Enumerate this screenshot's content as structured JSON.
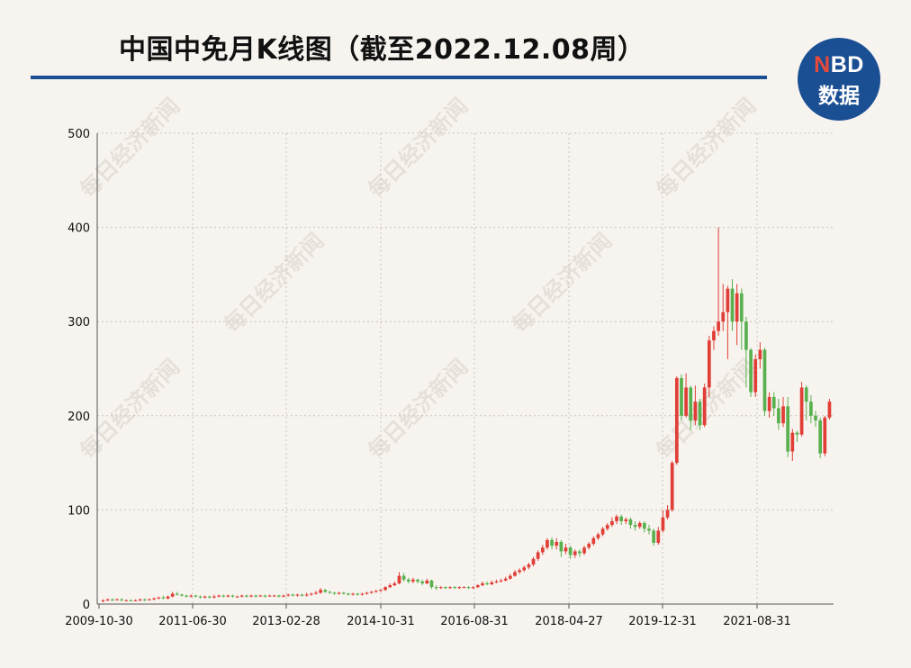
{
  "title": "中国中免月K线图（截至2022.12.08周）",
  "logo": {
    "n": "N",
    "bd": "BD",
    "sub": "数据"
  },
  "watermark": "每日经济新闻",
  "colors": {
    "up": "#e03e36",
    "down": "#58b04e",
    "rule": "#1b4f93",
    "grid": "#c9c4bc"
  },
  "chart_data": {
    "type": "candlestick",
    "title": "中国中免月K线图（截至2022.12.08周）",
    "ylim": [
      0,
      500
    ],
    "yticks": [
      0,
      100,
      200,
      300,
      400,
      500
    ],
    "ytick_labels": [
      "0",
      "100",
      "200",
      "300",
      "400",
      "500"
    ],
    "xtick_labels": [
      "2009-10-30",
      "2011-06-30",
      "2013-02-28",
      "2014-10-31",
      "2016-08-31",
      "2018-04-27",
      "2019-12-31",
      "2021-08-31"
    ],
    "grid": true,
    "fields": [
      "open",
      "close",
      "high",
      "low"
    ],
    "candles": [
      [
        3,
        4,
        5,
        2
      ],
      [
        4,
        5,
        6,
        3
      ],
      [
        5,
        4,
        6,
        3
      ],
      [
        4,
        5,
        6,
        4
      ],
      [
        5,
        4,
        6,
        3
      ],
      [
        4,
        4,
        5,
        3
      ],
      [
        4,
        3,
        5,
        3
      ],
      [
        3,
        4,
        5,
        3
      ],
      [
        4,
        5,
        6,
        3
      ],
      [
        5,
        4,
        6,
        3
      ],
      [
        4,
        5,
        6,
        4
      ],
      [
        5,
        6,
        7,
        4
      ],
      [
        6,
        7,
        8,
        5
      ],
      [
        7,
        6,
        9,
        5
      ],
      [
        6,
        8,
        9,
        5
      ],
      [
        8,
        11,
        13,
        7
      ],
      [
        11,
        10,
        13,
        9
      ],
      [
        10,
        9,
        11,
        8
      ],
      [
        9,
        8,
        10,
        7
      ],
      [
        8,
        9,
        10,
        7
      ],
      [
        9,
        8,
        10,
        7
      ],
      [
        8,
        7,
        9,
        6
      ],
      [
        7,
        8,
        9,
        6
      ],
      [
        8,
        7,
        9,
        6
      ],
      [
        7,
        8,
        10,
        6
      ],
      [
        8,
        9,
        10,
        7
      ],
      [
        9,
        8,
        10,
        7
      ],
      [
        8,
        9,
        10,
        7
      ],
      [
        9,
        8,
        10,
        7
      ],
      [
        8,
        8,
        9,
        7
      ],
      [
        8,
        9,
        10,
        7
      ],
      [
        9,
        8,
        10,
        7
      ],
      [
        8,
        9,
        10,
        7
      ],
      [
        9,
        8,
        10,
        7
      ],
      [
        8,
        9,
        10,
        8
      ],
      [
        9,
        8,
        10,
        7
      ],
      [
        8,
        9,
        10,
        8
      ],
      [
        9,
        9,
        10,
        8
      ],
      [
        9,
        8,
        10,
        7
      ],
      [
        8,
        9,
        10,
        7
      ],
      [
        9,
        10,
        11,
        8
      ],
      [
        10,
        9,
        11,
        8
      ],
      [
        9,
        10,
        11,
        8
      ],
      [
        10,
        9,
        11,
        8
      ],
      [
        9,
        10,
        12,
        8
      ],
      [
        10,
        11,
        12,
        9
      ],
      [
        11,
        12,
        14,
        10
      ],
      [
        12,
        15,
        17,
        11
      ],
      [
        15,
        13,
        16,
        12
      ],
      [
        13,
        12,
        14,
        11
      ],
      [
        12,
        11,
        13,
        10
      ],
      [
        11,
        12,
        13,
        10
      ],
      [
        12,
        11,
        13,
        10
      ],
      [
        11,
        10,
        12,
        9
      ],
      [
        10,
        11,
        12,
        9
      ],
      [
        11,
        10,
        12,
        9
      ],
      [
        10,
        11,
        12,
        9
      ],
      [
        11,
        12,
        13,
        10
      ],
      [
        12,
        13,
        14,
        11
      ],
      [
        13,
        14,
        15,
        12
      ],
      [
        14,
        15,
        16,
        13
      ],
      [
        15,
        18,
        19,
        14
      ],
      [
        18,
        20,
        22,
        17
      ],
      [
        20,
        22,
        24,
        19
      ],
      [
        22,
        30,
        34,
        21
      ],
      [
        30,
        26,
        33,
        24
      ],
      [
        26,
        24,
        28,
        22
      ],
      [
        24,
        26,
        28,
        22
      ],
      [
        26,
        24,
        27,
        22
      ],
      [
        24,
        22,
        26,
        20
      ],
      [
        22,
        25,
        27,
        21
      ],
      [
        25,
        18,
        26,
        16
      ],
      [
        18,
        17,
        20,
        15
      ],
      [
        17,
        18,
        19,
        16
      ],
      [
        18,
        17,
        19,
        16
      ],
      [
        17,
        18,
        19,
        16
      ],
      [
        18,
        17,
        19,
        16
      ],
      [
        17,
        18,
        19,
        16
      ],
      [
        18,
        18,
        19,
        17
      ],
      [
        18,
        17,
        19,
        16
      ],
      [
        17,
        18,
        19,
        16
      ],
      [
        18,
        20,
        21,
        17
      ],
      [
        20,
        22,
        24,
        19
      ],
      [
        22,
        21,
        24,
        20
      ],
      [
        21,
        23,
        25,
        20
      ],
      [
        23,
        24,
        26,
        22
      ],
      [
        24,
        25,
        27,
        23
      ],
      [
        25,
        27,
        29,
        24
      ],
      [
        27,
        30,
        32,
        26
      ],
      [
        30,
        34,
        36,
        29
      ],
      [
        34,
        36,
        38,
        32
      ],
      [
        36,
        39,
        41,
        34
      ],
      [
        39,
        42,
        44,
        37
      ],
      [
        42,
        48,
        50,
        40
      ],
      [
        48,
        55,
        57,
        46
      ],
      [
        55,
        60,
        63,
        52
      ],
      [
        60,
        68,
        70,
        58
      ],
      [
        68,
        62,
        71,
        58
      ],
      [
        62,
        66,
        70,
        58
      ],
      [
        66,
        56,
        68,
        50
      ],
      [
        56,
        60,
        64,
        53
      ],
      [
        60,
        52,
        62,
        48
      ],
      [
        52,
        56,
        58,
        49
      ],
      [
        56,
        54,
        58,
        50
      ],
      [
        54,
        60,
        62,
        52
      ],
      [
        60,
        64,
        66,
        58
      ],
      [
        64,
        70,
        72,
        62
      ],
      [
        70,
        74,
        76,
        68
      ],
      [
        74,
        80,
        82,
        72
      ],
      [
        80,
        84,
        86,
        78
      ],
      [
        84,
        88,
        92,
        82
      ],
      [
        88,
        93,
        95,
        85
      ],
      [
        93,
        88,
        95,
        84
      ],
      [
        88,
        90,
        92,
        85
      ],
      [
        90,
        84,
        92,
        80
      ],
      [
        84,
        82,
        88,
        78
      ],
      [
        82,
        86,
        88,
        80
      ],
      [
        86,
        80,
        88,
        76
      ],
      [
        80,
        78,
        84,
        74
      ],
      [
        78,
        65,
        80,
        62
      ],
      [
        65,
        78,
        82,
        63
      ],
      [
        78,
        92,
        100,
        76
      ],
      [
        92,
        100,
        105,
        90
      ],
      [
        100,
        150,
        152,
        98
      ],
      [
        150,
        240,
        242,
        148
      ],
      [
        240,
        200,
        244,
        195
      ],
      [
        200,
        230,
        245,
        198
      ],
      [
        230,
        195,
        232,
        185
      ],
      [
        195,
        215,
        232,
        190
      ],
      [
        215,
        190,
        218,
        185
      ],
      [
        190,
        230,
        234,
        188
      ],
      [
        230,
        280,
        285,
        220
      ],
      [
        280,
        290,
        295,
        270
      ],
      [
        290,
        300,
        400,
        285
      ],
      [
        300,
        310,
        340,
        290
      ],
      [
        310,
        335,
        338,
        260
      ],
      [
        335,
        300,
        345,
        290
      ],
      [
        300,
        330,
        340,
        275
      ],
      [
        330,
        300,
        335,
        270
      ],
      [
        300,
        270,
        305,
        230
      ],
      [
        270,
        225,
        272,
        220
      ],
      [
        225,
        260,
        265,
        220
      ],
      [
        260,
        270,
        278,
        250
      ],
      [
        270,
        205,
        272,
        200
      ],
      [
        205,
        220,
        225,
        198
      ],
      [
        220,
        208,
        225,
        200
      ],
      [
        208,
        192,
        218,
        185
      ],
      [
        192,
        210,
        220,
        188
      ],
      [
        210,
        162,
        220,
        156
      ],
      [
        162,
        182,
        186,
        152
      ],
      [
        182,
        180,
        184,
        172
      ],
      [
        180,
        230,
        236,
        178
      ],
      [
        230,
        215,
        232,
        195
      ],
      [
        215,
        200,
        222,
        192
      ],
      [
        200,
        195,
        205,
        188
      ],
      [
        195,
        160,
        198,
        155
      ],
      [
        160,
        198,
        200,
        157
      ],
      [
        198,
        215,
        218,
        196
      ]
    ]
  }
}
